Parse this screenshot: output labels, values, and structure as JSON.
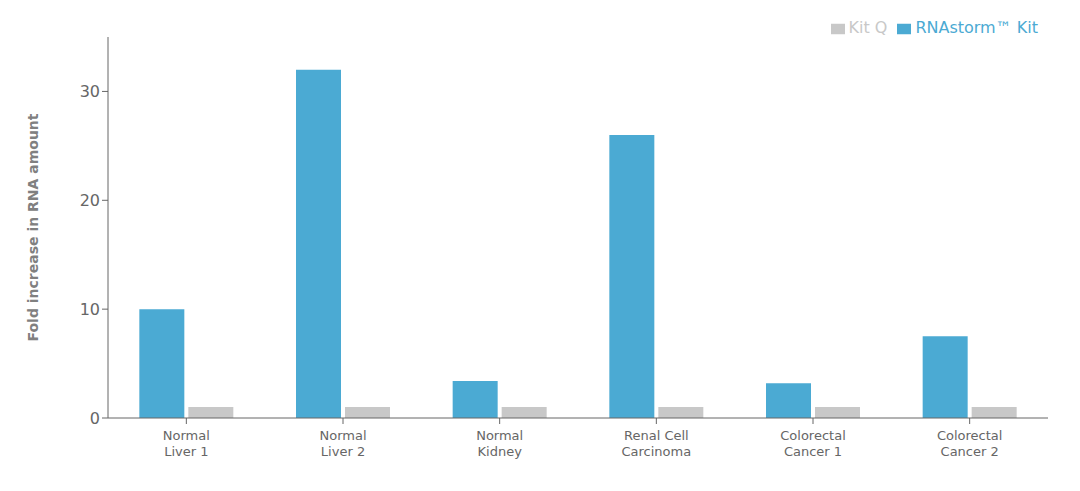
{
  "chart_data": {
    "type": "bar",
    "categories": [
      "Normal\nLiver 1",
      "Normal\nLiver 2",
      "Normal\nKidney",
      "Renal Cell\nCarcinoma",
      "Colorectal\nCancer 1",
      "Colorectal\nCancer 2"
    ],
    "series": [
      {
        "name": "RNAstorm™ Kit",
        "color": "#4BAAD3",
        "values": [
          10.0,
          32.0,
          3.4,
          26.0,
          3.2,
          7.5
        ]
      },
      {
        "name": "Kit Q",
        "color": "#C8C8C8",
        "values": [
          1.0,
          1.0,
          1.0,
          1.0,
          1.0,
          1.0
        ]
      }
    ],
    "ylabel": "Fold increase in RNA amount",
    "ylim": [
      0,
      35
    ],
    "yticks": [
      0,
      10,
      20,
      30
    ],
    "grid": false,
    "legend": "upper right"
  }
}
